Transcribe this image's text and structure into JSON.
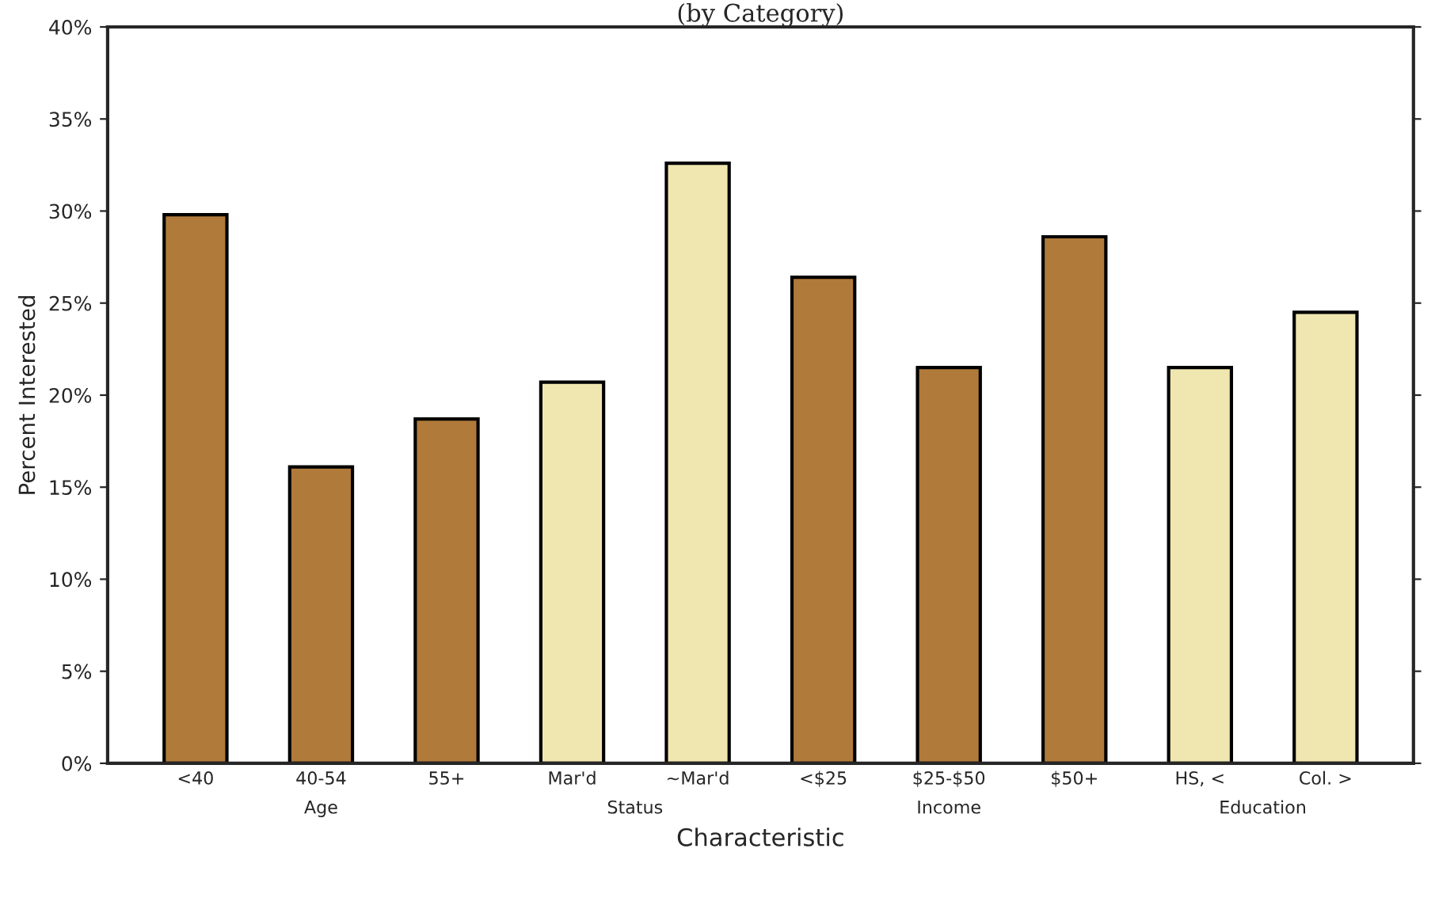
{
  "chart_data": {
    "type": "bar",
    "title": "(by Category)",
    "xlabel": "Characteristic",
    "ylabel": "Percent Interested",
    "categories": [
      "<40",
      "40-54",
      "55+",
      "Mar'd",
      "~Mar'd",
      "<$25",
      "$25-$50",
      "$50+",
      "HS, <",
      "Col. >"
    ],
    "values": [
      29.8,
      16.1,
      18.7,
      20.7,
      32.6,
      26.4,
      21.5,
      28.6,
      21.5,
      24.5
    ],
    "colors": [
      "#b07a3a",
      "#b07a3a",
      "#b07a3a",
      "#f0e6b0",
      "#f0e6b0",
      "#b07a3a",
      "#b07a3a",
      "#b07a3a",
      "#f0e6b0",
      "#f0e6b0"
    ],
    "annotations": [
      "Age",
      "Status",
      "Income",
      "Education"
    ],
    "ylim": [
      0,
      40
    ],
    "yticks": [
      {
        "value": 0,
        "label": "0%"
      },
      {
        "value": 5,
        "label": "5%"
      },
      {
        "value": 10,
        "label": "10%"
      },
      {
        "value": 15,
        "label": "15%"
      },
      {
        "value": 20,
        "label": "20%"
      },
      {
        "value": 25,
        "label": "25%"
      },
      {
        "value": 30,
        "label": "30%"
      },
      {
        "value": 35,
        "label": "35%"
      },
      {
        "value": 40,
        "label": "40%"
      }
    ],
    "grid": false,
    "legend": false
  }
}
